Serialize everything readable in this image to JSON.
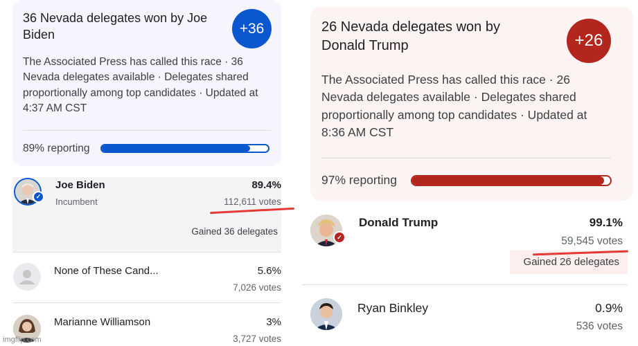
{
  "left": {
    "title": "36 Nevada delegates won by Joe Biden",
    "badge": "+36",
    "description": "The Associated Press has called this race · 36 Nevada delegates available · Delegates shared proportionally among top candidates · Updated at 4:37 AM CST",
    "reporting_label": "89% reporting",
    "reporting_fraction": 0.89,
    "accent": "#0b57d0",
    "candidates": [
      {
        "name": "Joe Biden",
        "subtitle": "Incumbent",
        "percent": "89.4%",
        "votes": "112,611 votes",
        "delegates": "Gained 36 delegates"
      },
      {
        "name": "None of These Cand...",
        "percent": "5.6%",
        "votes": "7,026 votes"
      },
      {
        "name": "Marianne Williamson",
        "percent": "3%",
        "votes": "3,727 votes"
      }
    ]
  },
  "right": {
    "title": "26 Nevada delegates won by Donald Trump",
    "badge": "+26",
    "description": "The Associated Press has called this race · 26 Nevada delegates available · Delegates shared proportionally among top candidates · Updated at 8:36 AM CST",
    "reporting_label": "97% reporting",
    "reporting_fraction": 0.97,
    "accent": "#b3261e",
    "candidates": [
      {
        "name": "Donald Trump",
        "percent": "99.1%",
        "votes": "59,545 votes",
        "delegates": "Gained 26 delegates"
      },
      {
        "name": "Ryan Binkley",
        "percent": "0.9%",
        "votes": "536 votes"
      }
    ]
  },
  "watermark": "imgflip.com"
}
